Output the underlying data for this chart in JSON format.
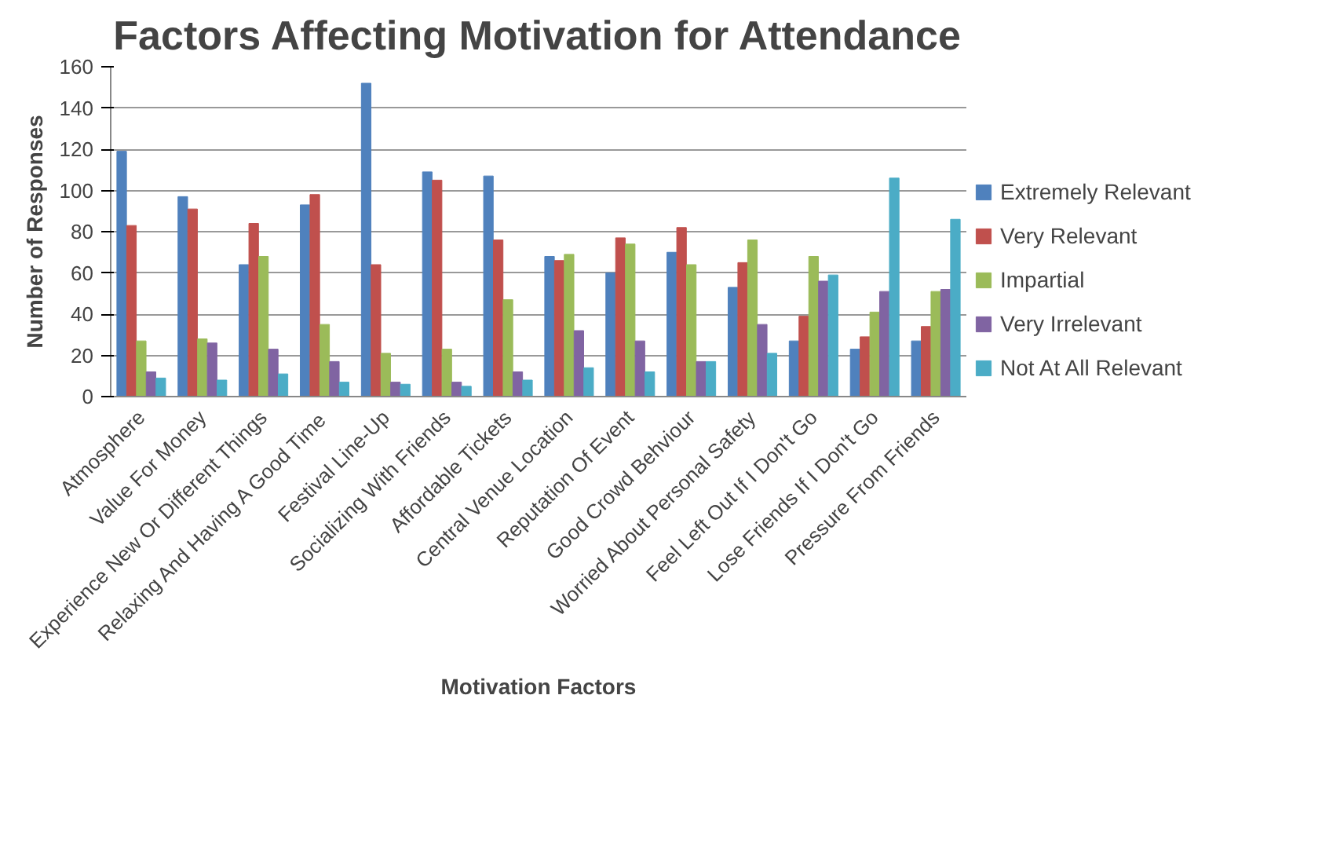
{
  "chart_data": {
    "type": "bar",
    "title": "Factors Affecting Motivation for Attendance",
    "xlabel": "Motivation Factors",
    "ylabel": "Number of Responses",
    "categories": [
      "Atmosphere",
      "Value For Money",
      "Experience New Or Different Things",
      "Relaxing And Having A Good Time",
      "Festival Line-Up",
      "Socializing With Friends",
      "Affordable Tickets",
      "Central Venue Location",
      "Reputation Of Event",
      "Good Crowd Behviour",
      "Worried About Personal Safety",
      "Feel Left Out If I Don't Go",
      "Lose Friends If I Don't Go",
      "Pressure From Friends"
    ],
    "series": [
      {
        "name": "Extremely Relevant",
        "color": "#4f81bd",
        "values": [
          119,
          97,
          64,
          93,
          152,
          109,
          107,
          68,
          60,
          70,
          53,
          27,
          23,
          27
        ]
      },
      {
        "name": "Very Relevant",
        "color": "#c0504d",
        "values": [
          83,
          91,
          84,
          98,
          64,
          105,
          76,
          66,
          77,
          82,
          65,
          39,
          29,
          34
        ]
      },
      {
        "name": "Impartial",
        "color": "#9bbb59",
        "values": [
          27,
          28,
          68,
          35,
          21,
          23,
          47,
          69,
          74,
          64,
          76,
          68,
          41,
          51
        ]
      },
      {
        "name": "Very Irrelevant",
        "color": "#8064a2",
        "values": [
          12,
          26,
          23,
          17,
          7,
          7,
          12,
          32,
          27,
          17,
          35,
          56,
          51,
          52
        ]
      },
      {
        "name": "Not At All Relevant",
        "color": "#4bacc6",
        "values": [
          9,
          8,
          11,
          7,
          6,
          5,
          8,
          14,
          12,
          17,
          21,
          59,
          106,
          86
        ]
      }
    ],
    "ylim": [
      0,
      160
    ],
    "yticks": [
      0,
      20,
      40,
      60,
      80,
      100,
      120,
      140,
      160
    ],
    "grid": "y",
    "legend": "right"
  }
}
